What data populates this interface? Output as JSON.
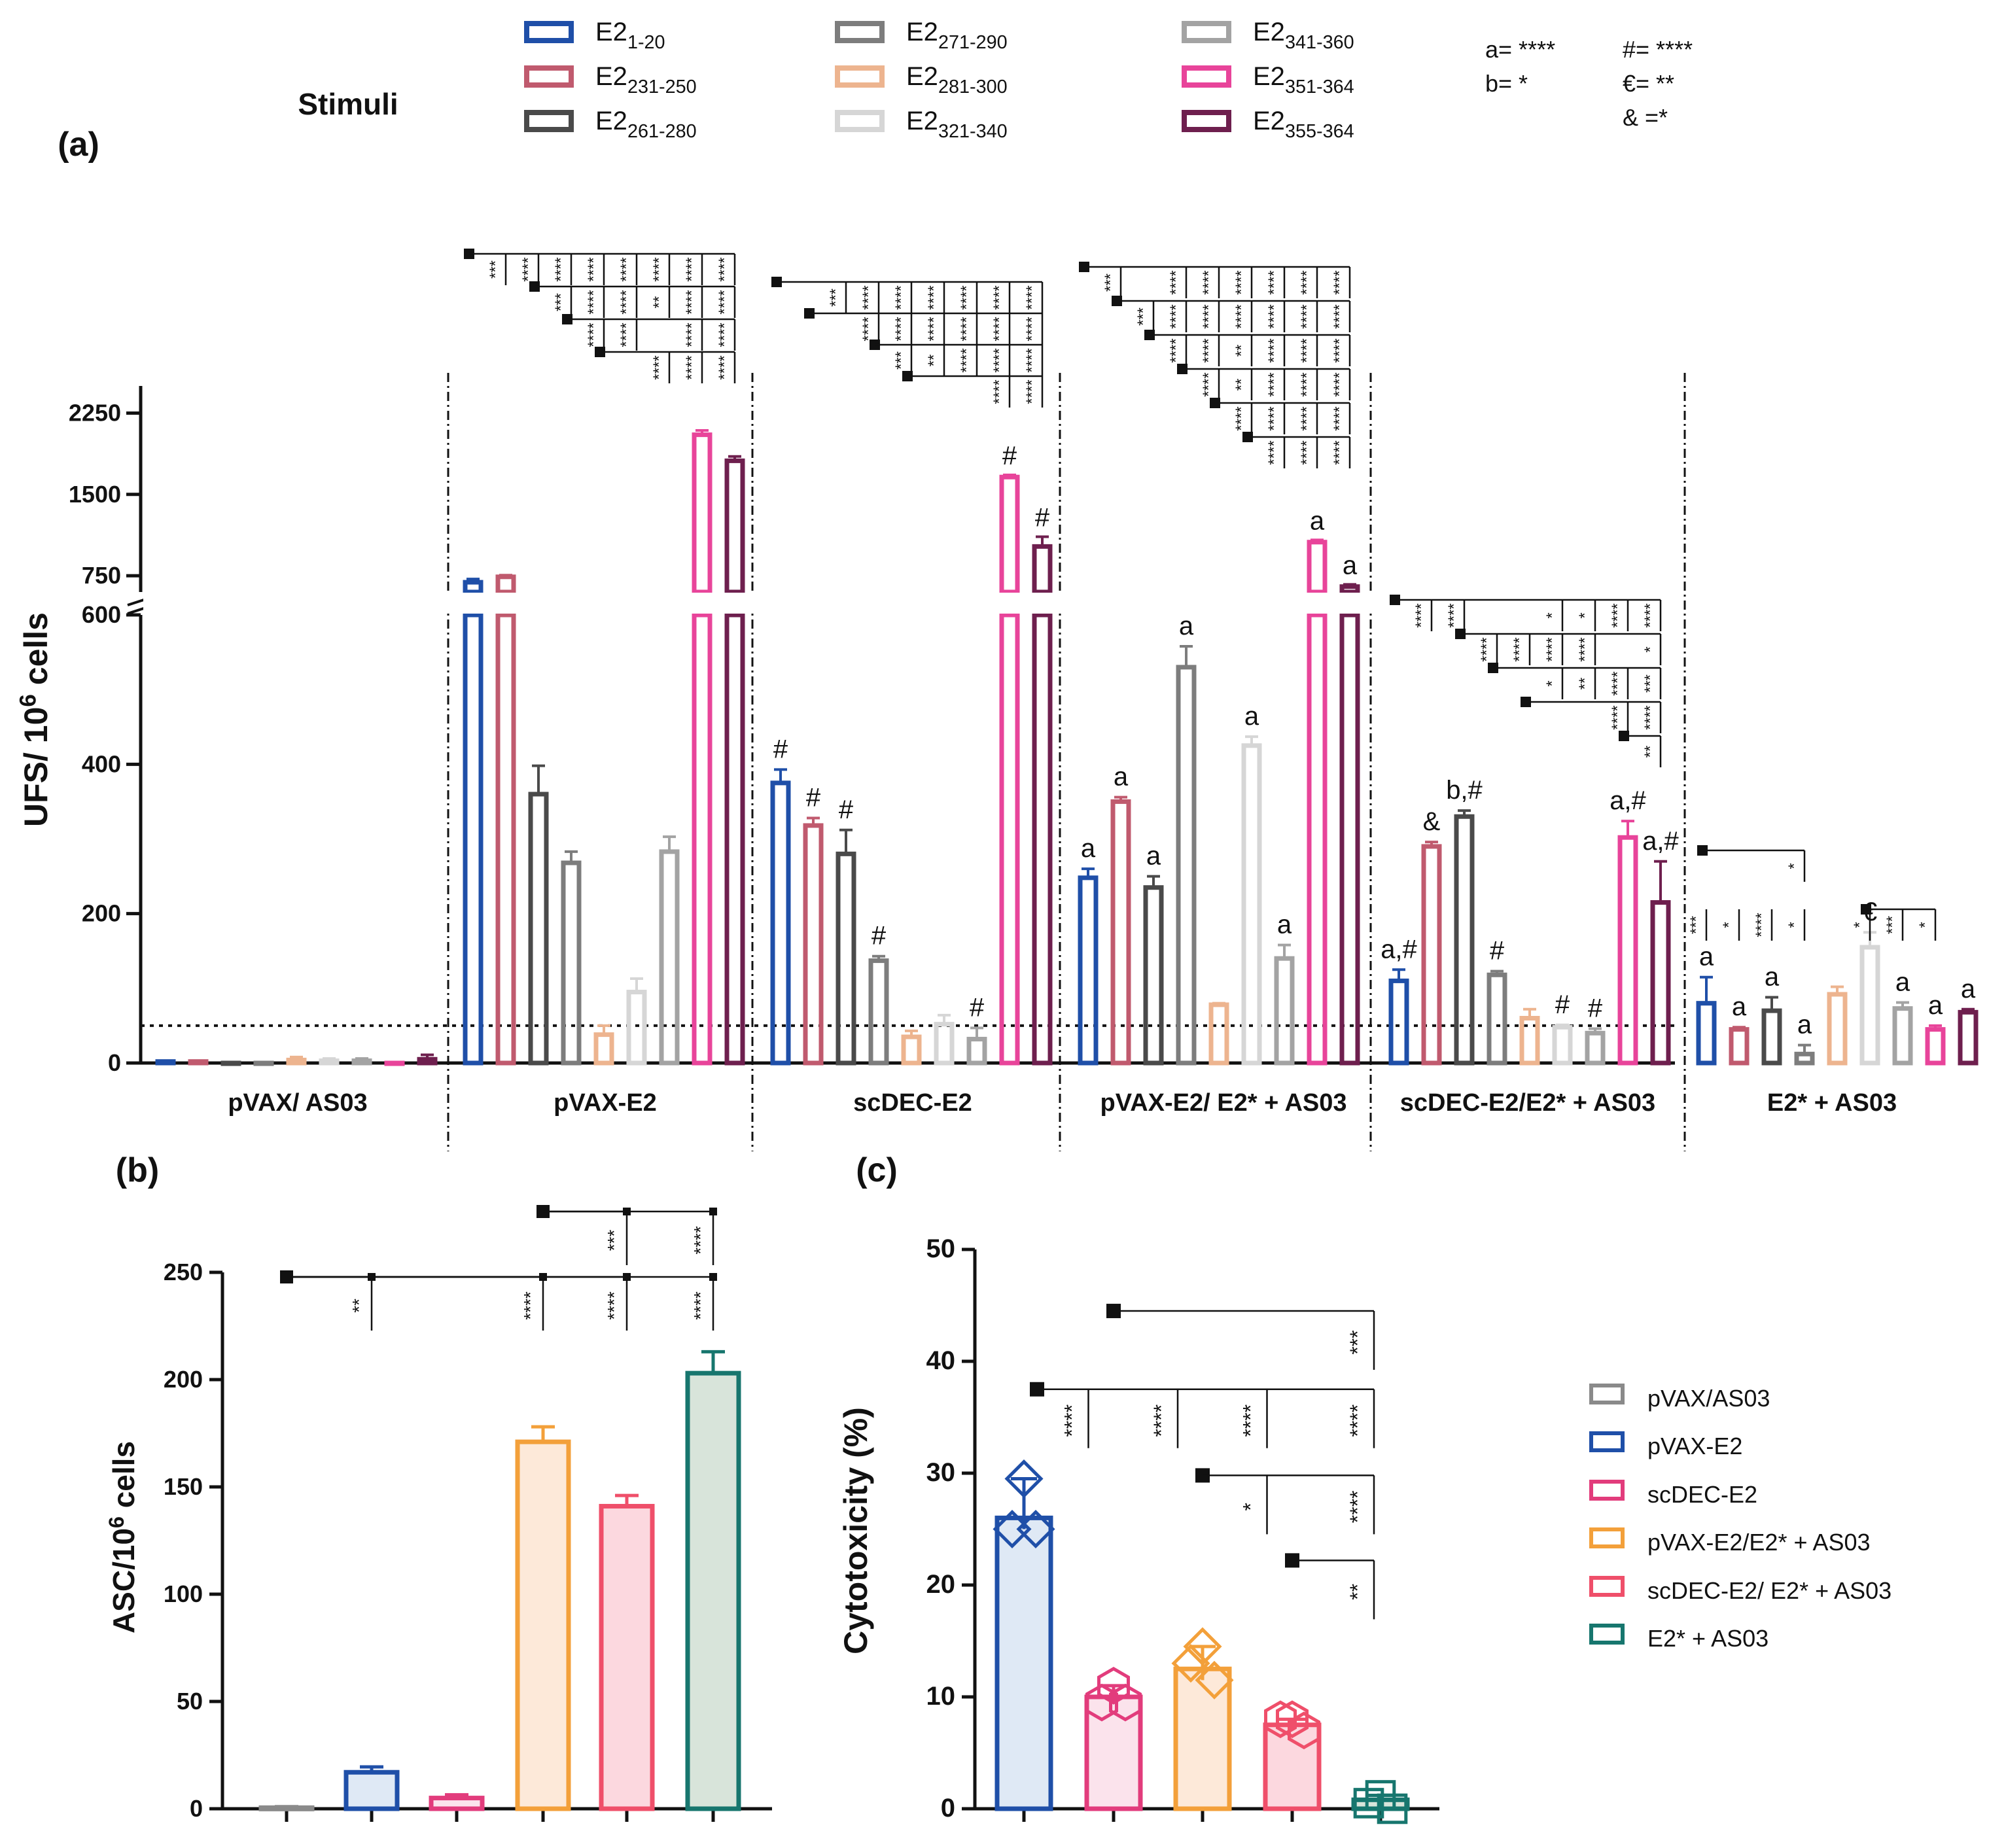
{
  "figure": {
    "panel_labels": [
      "(a)",
      "(b)",
      "(c)"
    ]
  },
  "colors": {
    "E2_1_20": "#1f4fa8",
    "E2_231_250": "#c05a6e",
    "E2_261_280": "#4a4a4a",
    "E2_271_290": "#7d7d7d",
    "E2_281_300": "#edb48f",
    "E2_321_340": "#d6d6d6",
    "E2_341_360": "#a3a3a3",
    "E2_351_364": "#e8449a",
    "E2_355_364": "#6e1f4e",
    "pVAX_AS03": "#8a8a8a",
    "pVAX_E2": "#1f4fa8",
    "scDEC_E2": "#e23c7c",
    "pVAX_E2_E2_AS03": "#f3a03a",
    "scDEC_E2_E2_AS03": "#ef4f6a",
    "E2_AS03": "#17766e"
  },
  "legend_a": {
    "title": "Stimuli",
    "items": [
      {
        "base": "E2",
        "sub": "1-20",
        "color": "#1f4fa8"
      },
      {
        "base": "E2",
        "sub": "231-250",
        "color": "#c05a6e"
      },
      {
        "base": "E2",
        "sub": "261-280",
        "color": "#4a4a4a"
      },
      {
        "base": "E2",
        "sub": "271-290",
        "color": "#7d7d7d"
      },
      {
        "base": "E2",
        "sub": "281-300",
        "color": "#edb48f"
      },
      {
        "base": "E2",
        "sub": "321-340",
        "color": "#d6d6d6"
      },
      {
        "base": "E2",
        "sub": "341-360",
        "color": "#a3a3a3"
      },
      {
        "base": "E2",
        "sub": "351-364",
        "color": "#e8449a"
      },
      {
        "base": "E2",
        "sub": "355-364",
        "color": "#6e1f4e"
      }
    ],
    "sig_key": [
      "a= ****",
      "b= *",
      "#= ****",
      "€= **",
      "& =*"
    ]
  },
  "legend_c": [
    "pVAX/AS03",
    "pVAX-E2",
    "scDEC-E2",
    "pVAX-E2/E2* + AS03",
    "scDEC-E2/ E2* + AS03",
    "E2* + AS03"
  ],
  "chart_data": [
    {
      "id": "a",
      "type": "bar",
      "title": "",
      "ylabel_base": "UFS/ 10",
      "ylabel_sup": "6",
      "ylabel_tail": " cells",
      "y_lower_ticks": [
        0,
        200,
        400,
        600
      ],
      "y_upper_ticks": [
        750,
        1500,
        2250
      ],
      "ylim_lower": [
        0,
        600
      ],
      "ylim_upper": [
        600,
        2500
      ],
      "threshold": 50,
      "groups": [
        "pVAX/ AS03",
        "pVAX-E2",
        "scDEC-E2",
        "pVAX-E2/ E2* + AS03",
        "scDEC-E2/E2* + AS03",
        "E2* + AS03"
      ],
      "series": [
        {
          "name": "E2 1-20",
          "values": [
            2,
            690,
            375,
            248,
            110,
            80
          ],
          "errors": [
            1,
            30,
            18,
            12,
            15,
            35
          ],
          "annot": [
            "",
            "",
            "#",
            "a",
            "a,#",
            "a"
          ]
        },
        {
          "name": "E2 231-250",
          "values": [
            2,
            740,
            318,
            350,
            290,
            45
          ],
          "errors": [
            1,
            15,
            10,
            6,
            6,
            3
          ],
          "annot": [
            "",
            "",
            "#",
            "a",
            "&",
            "a"
          ]
        },
        {
          "name": "E2 261-280",
          "values": [
            0,
            360,
            280,
            235,
            330,
            70
          ],
          "errors": [
            0,
            38,
            32,
            15,
            8,
            18
          ],
          "annot": [
            "",
            "",
            "#",
            "a",
            "b,#",
            "a"
          ]
        },
        {
          "name": "E2 271-290",
          "values": [
            0,
            268,
            137,
            530,
            118,
            12
          ],
          "errors": [
            0,
            15,
            6,
            28,
            5,
            12
          ],
          "annot": [
            "",
            "",
            "#",
            "a",
            "#",
            "a"
          ]
        },
        {
          "name": "E2 281-300",
          "values": [
            4,
            38,
            35,
            78,
            60,
            92
          ],
          "errors": [
            4,
            12,
            8,
            2,
            12,
            10
          ],
          "annot": [
            "",
            "",
            "",
            "",
            "",
            ""
          ]
        },
        {
          "name": "E2 321-340",
          "values": [
            3,
            95,
            52,
            425,
            48,
            155
          ],
          "errors": [
            3,
            18,
            12,
            12,
            3,
            20
          ],
          "annot": [
            "",
            "",
            "",
            "a",
            "#",
            "€"
          ]
        },
        {
          "name": "E2 341-360",
          "values": [
            3,
            283,
            32,
            140,
            40,
            73
          ],
          "errors": [
            3,
            20,
            15,
            18,
            6,
            8
          ],
          "annot": [
            "",
            "",
            "#",
            "a",
            "#",
            "a"
          ]
        },
        {
          "name": "E2 351-364",
          "values": [
            0,
            2050,
            1660,
            1060,
            302,
            45
          ],
          "errors": [
            0,
            40,
            20,
            20,
            22,
            5
          ],
          "annot": [
            "",
            "",
            "#",
            "a",
            "a,#",
            "a"
          ]
        },
        {
          "name": "E2 355-364",
          "values": [
            5,
            1810,
            1020,
            650,
            215,
            68
          ],
          "errors": [
            6,
            40,
            90,
            20,
            55,
            4
          ],
          "annot": [
            "",
            "",
            "#",
            "a",
            "a,#",
            "a"
          ]
        }
      ],
      "comparisons": [
        {
          "group": 1,
          "from": 0,
          "stars": [
            "",
            "***",
            "****",
            "****",
            "****",
            "****",
            "****",
            "****",
            "****"
          ]
        },
        {
          "group": 1,
          "from": 2,
          "stars": [
            "",
            "",
            "",
            "***",
            "****",
            "****",
            "**",
            "****",
            "****"
          ]
        },
        {
          "group": 1,
          "from": 3,
          "stars": [
            "",
            "",
            "",
            "",
            "****",
            "****",
            "",
            "****",
            "****"
          ]
        },
        {
          "group": 1,
          "from": 4,
          "stars": [
            "",
            "",
            "",
            "",
            "",
            "",
            "****",
            "****",
            "****"
          ]
        },
        {
          "group": 2,
          "from": 0,
          "stars": [
            "",
            "",
            "***",
            "****",
            "****",
            "****",
            "****",
            "****",
            "****"
          ]
        },
        {
          "group": 2,
          "from": 1,
          "stars": [
            "",
            "",
            "",
            "****",
            "****",
            "****",
            "****",
            "****",
            "****"
          ]
        },
        {
          "group": 2,
          "from": 3,
          "stars": [
            "",
            "",
            "",
            "",
            "***",
            "**",
            "****",
            "****",
            "****"
          ]
        },
        {
          "group": 2,
          "from": 4,
          "stars": [
            "",
            "",
            "",
            "",
            "",
            "",
            "",
            "****",
            "****"
          ]
        },
        {
          "group": 3,
          "from": 0,
          "stars": [
            "",
            "***",
            "",
            "****",
            "****",
            "****",
            "****",
            "****",
            "****"
          ]
        },
        {
          "group": 3,
          "from": 1,
          "stars": [
            "",
            "",
            "***",
            "****",
            "****",
            "****",
            "****",
            "****",
            "****"
          ]
        },
        {
          "group": 3,
          "from": 2,
          "stars": [
            "",
            "",
            "",
            "****",
            "****",
            "**",
            "****",
            "****",
            "****"
          ]
        },
        {
          "group": 3,
          "from": 3,
          "stars": [
            "",
            "",
            "",
            "",
            "****",
            "**",
            "****",
            "****",
            "****"
          ]
        },
        {
          "group": 3,
          "from": 4,
          "stars": [
            "",
            "",
            "",
            "",
            "",
            "****",
            "****",
            "****",
            "****"
          ]
        },
        {
          "group": 3,
          "from": 5,
          "stars": [
            "",
            "",
            "",
            "",
            "",
            "",
            "****",
            "****",
            "****"
          ]
        },
        {
          "group": 4,
          "from": 0,
          "stars": [
            "",
            "****",
            "****",
            "",
            "",
            "*",
            "*",
            "****",
            "****"
          ]
        },
        {
          "group": 4,
          "from": 2,
          "stars": [
            "",
            "",
            "",
            "****",
            "****",
            "****",
            "****",
            "",
            "*"
          ]
        },
        {
          "group": 4,
          "from": 3,
          "stars": [
            "",
            "",
            "",
            "",
            "",
            "*",
            "**",
            "****",
            "***"
          ]
        },
        {
          "group": 4,
          "from": 4,
          "stars": [
            "",
            "",
            "",
            "",
            "",
            "",
            "",
            "****",
            "****"
          ]
        },
        {
          "group": 4,
          "from": 7,
          "stars": [
            "",
            "",
            "",
            "",
            "",
            "",
            "",
            "",
            "**"
          ]
        },
        {
          "group": 5,
          "from": 0,
          "stars": [
            "",
            "",
            "",
            "*",
            "",
            "",
            "",
            "",
            ""
          ]
        },
        {
          "group": 5,
          "from": 5,
          "stars": [
            "***",
            "*",
            "****",
            "*",
            "",
            "*",
            "***",
            "*",
            ""
          ]
        }
      ]
    },
    {
      "id": "b",
      "type": "bar",
      "ylabel_base": "ASC/10",
      "ylabel_sup": "6",
      "ylabel_tail": " cells",
      "ylim": [
        0,
        250
      ],
      "yticks": [
        0,
        50,
        100,
        150,
        200,
        250
      ],
      "categories": [
        "pVAX/AS03",
        "pVAX-E2",
        "scDEC-E2",
        "pVAX-E2/E2* + AS03",
        "scDEC-E2/ E2* + AS03",
        "E2* + AS03"
      ],
      "values": [
        0.5,
        17,
        5,
        171,
        141,
        203
      ],
      "errors": [
        0.5,
        2.5,
        1.5,
        7,
        5,
        10
      ],
      "comparisons": [
        {
          "from": 0,
          "to": 1,
          "stars": "**"
        },
        {
          "from": 0,
          "to": 3,
          "stars": "****"
        },
        {
          "from": 0,
          "to": 4,
          "stars": "****"
        },
        {
          "from": 0,
          "to": 5,
          "stars": "****"
        },
        {
          "from": 3,
          "to": 4,
          "stars": "***"
        },
        {
          "from": 3,
          "to": 5,
          "stars": "****"
        }
      ]
    },
    {
      "id": "c",
      "type": "bar",
      "ylabel": "Cytotoxicity (%)",
      "ylim": [
        0,
        50
      ],
      "yticks": [
        0,
        10,
        20,
        30,
        40,
        50
      ],
      "categories": [
        "pVAX-E2",
        "scDEC-E2",
        "pVAX-E2/E2* + AS03",
        "scDEC-E2/ E2* + AS03",
        "E2* + AS03"
      ],
      "values": [
        26,
        10,
        12.5,
        7.5,
        0.8
      ],
      "points": [
        [
          29.5,
          25,
          25
        ],
        [
          11,
          9.5,
          9.5
        ],
        [
          14.5,
          13,
          11.5
        ],
        [
          8,
          8,
          7
        ],
        [
          1.2,
          0.5,
          0
        ]
      ],
      "markers": [
        "diamond",
        "hexagon",
        "diamond",
        "hexagon",
        "square"
      ],
      "comparisons": [
        {
          "from": 1,
          "to": 4,
          "stars": "***",
          "yval": 44.5
        },
        {
          "from": 0,
          "to": 1,
          "stars": "****",
          "yval": 37.5
        },
        {
          "from": 0,
          "to": 2,
          "stars": "****",
          "yval": 37.5
        },
        {
          "from": 0,
          "to": 3,
          "stars": "****",
          "yval": 37.5
        },
        {
          "from": 0,
          "to": 4,
          "stars": "****",
          "yval": 37.5
        },
        {
          "from": 2,
          "to": 3,
          "stars": "*",
          "yval": 29.8
        },
        {
          "from": 2,
          "to": 4,
          "stars": "****",
          "yval": 29.8
        },
        {
          "from": 3,
          "to": 4,
          "stars": "**",
          "yval": 22.2
        }
      ]
    }
  ]
}
